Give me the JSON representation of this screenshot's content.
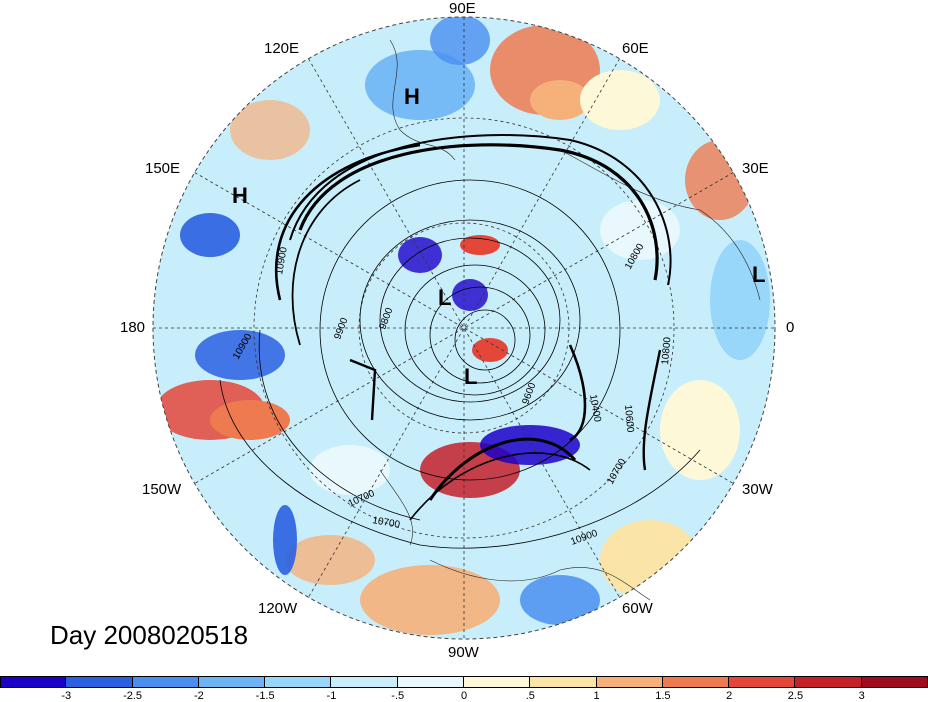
{
  "title": "Day 2008020518",
  "longitude_labels": {
    "lon_90E": "90E",
    "lon_60E": "60E",
    "lon_30E": "30E",
    "lon_0": "0",
    "lon_30W": "30W",
    "lon_60W": "60W",
    "lon_90W": "90W",
    "lon_120W": "120W",
    "lon_150W": "150W",
    "lon_180": "180",
    "lon_150E": "150E",
    "lon_120E": "120E"
  },
  "pressure_systems": {
    "high_1": "H",
    "high_2": "H",
    "low_1": "L",
    "low_2": "L",
    "low_3": "L"
  },
  "contour_labels": [
    "10900",
    "9900",
    "9800",
    "9600",
    "10400",
    "10600",
    "10700",
    "10800",
    "10800",
    "10900",
    "10700",
    "10900",
    "10700"
  ],
  "colorbar": {
    "colors": [
      "#1c00c8",
      "#2a5fe0",
      "#4a8ff0",
      "#6db4f5",
      "#98d6fa",
      "#c8eefc",
      "#e8f8fd",
      "#fdf9d8",
      "#fbe4a8",
      "#f6b07a",
      "#ee7a50",
      "#e4473a",
      "#c4202a",
      "#9e0a1e"
    ],
    "ticks": [
      "-3",
      "-2.5",
      "-2",
      "-1.5",
      "-1",
      "-.5",
      "0",
      ".5",
      "1",
      "1.5",
      "2",
      "2.5",
      "3"
    ]
  }
}
